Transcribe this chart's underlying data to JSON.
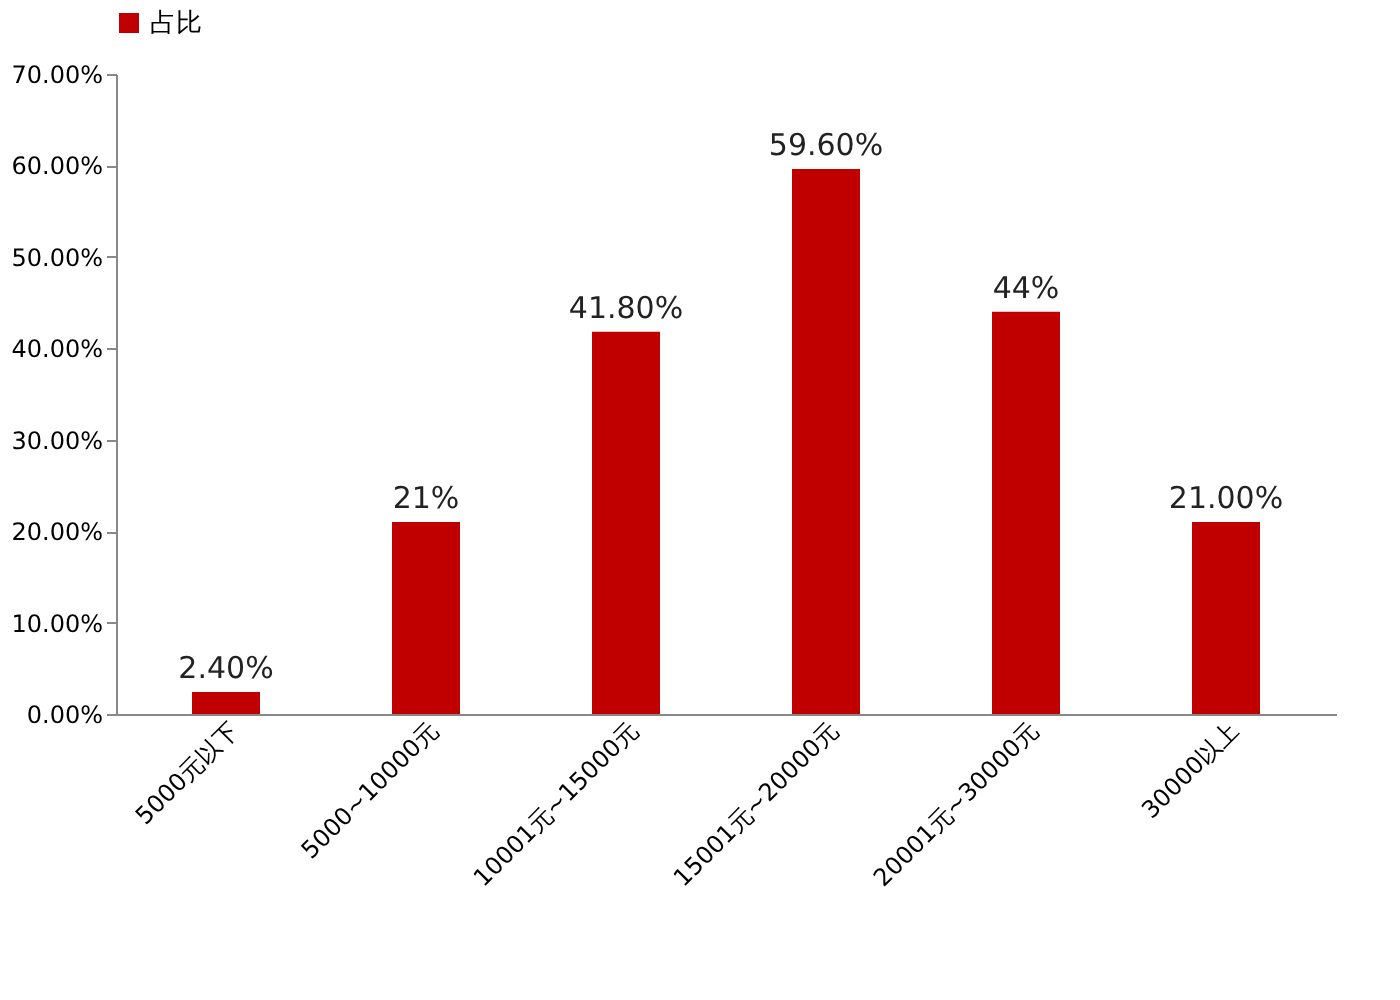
{
  "chart_data": {
    "type": "bar",
    "categories": [
      "5000元以下",
      "5000~10000元",
      "10001元~15000元",
      "15001元~20000元",
      "20001元~30000元",
      "30000以上"
    ],
    "series": [
      {
        "name": "占比",
        "color": "#c00000",
        "values": [
          2.4,
          21,
          41.8,
          59.6,
          44,
          21
        ],
        "value_labels": [
          "2.40%",
          "21%",
          "41.80%",
          "59.60%",
          "44%",
          "21.00%"
        ]
      }
    ],
    "ylim": [
      0,
      70
    ],
    "yticks": [
      {
        "value": 0,
        "label": "0.00%"
      },
      {
        "value": 10,
        "label": "10.00%"
      },
      {
        "value": 20,
        "label": "20.00%"
      },
      {
        "value": 30,
        "label": "30.00%"
      },
      {
        "value": 40,
        "label": "40.00%"
      },
      {
        "value": 50,
        "label": "50.00%"
      },
      {
        "value": 60,
        "label": "60.00%"
      },
      {
        "value": 70,
        "label": "70.00%"
      }
    ],
    "grid": false,
    "legend": "top"
  }
}
